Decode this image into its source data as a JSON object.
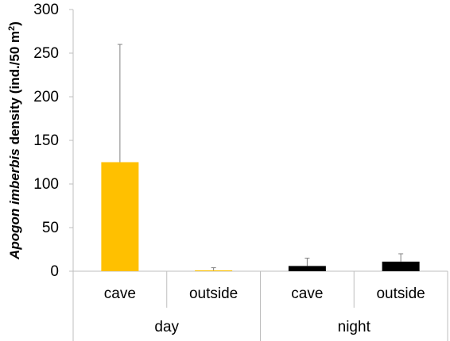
{
  "chart_data": {
    "type": "bar",
    "ylabel": {
      "italic_part": "Apogon imberbis",
      "rest": " density (ind./50 m",
      "superscript": "2",
      "close": ")"
    },
    "ylim": [
      0,
      300
    ],
    "yticks": [
      0,
      50,
      100,
      150,
      200,
      250,
      300
    ],
    "groups": [
      {
        "label": "day",
        "span": [
          0,
          1
        ]
      },
      {
        "label": "night",
        "span": [
          2,
          3
        ]
      }
    ],
    "bars": [
      {
        "category": "cave",
        "group": "day",
        "value": 125,
        "error": 135,
        "color": "#FFC000"
      },
      {
        "category": "outside",
        "group": "day",
        "value": 1,
        "error": 3,
        "color": "#FFC000"
      },
      {
        "category": "cave",
        "group": "night",
        "value": 6,
        "error": 9,
        "color": "#000000"
      },
      {
        "category": "outside",
        "group": "night",
        "value": 11,
        "error": 9,
        "color": "#000000"
      }
    ]
  }
}
